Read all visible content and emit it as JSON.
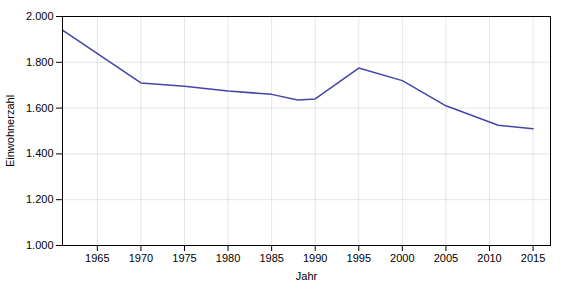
{
  "chart_data": {
    "type": "line",
    "x": [
      1961,
      1970,
      1975,
      1980,
      1985,
      1988,
      1990,
      1995,
      2000,
      2005,
      2011,
      2015
    ],
    "values": [
      1940,
      1710,
      1695,
      1675,
      1660,
      1635,
      1640,
      1775,
      1720,
      1610,
      1525,
      1510
    ],
    "color": "#4444aa",
    "xlabel": "Jahr",
    "ylabel": "Einwohnerzahl",
    "xlim": [
      1961,
      2017
    ],
    "ylim": [
      1000,
      2000
    ],
    "xticks": [
      1965,
      1970,
      1975,
      1980,
      1985,
      1990,
      1995,
      2000,
      2005,
      2010,
      2015
    ],
    "yticks": [
      {
        "value": 1000,
        "label": "1.000"
      },
      {
        "value": 1200,
        "label": "1.200"
      },
      {
        "value": 1400,
        "label": "1.400"
      },
      {
        "value": 1600,
        "label": "1.600"
      },
      {
        "value": 1800,
        "label": "1.800"
      },
      {
        "value": 2000,
        "label": "2.000"
      }
    ],
    "grid": true
  }
}
